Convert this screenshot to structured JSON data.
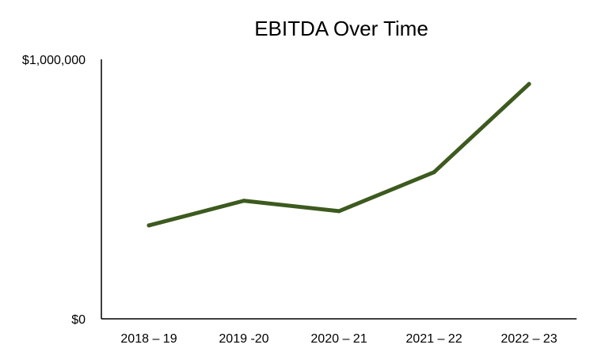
{
  "chart_data": {
    "type": "line",
    "title": "EBITDA Over Time",
    "xlabel": "",
    "ylabel": "",
    "categories": [
      "2018 – 19",
      "2019 -20",
      "2020 – 21",
      "2021 – 22",
      "2022 – 23"
    ],
    "series": [
      {
        "values": [
          360000,
          455000,
          415000,
          565000,
          905000
        ],
        "color": "#3d5a1f"
      }
    ],
    "ylim": [
      0,
      1000000
    ],
    "yticks": [
      {
        "value": 0,
        "label": "$0"
      },
      {
        "value": 1000000,
        "label": "$1,000,000"
      }
    ],
    "grid": false,
    "legend": "none"
  }
}
